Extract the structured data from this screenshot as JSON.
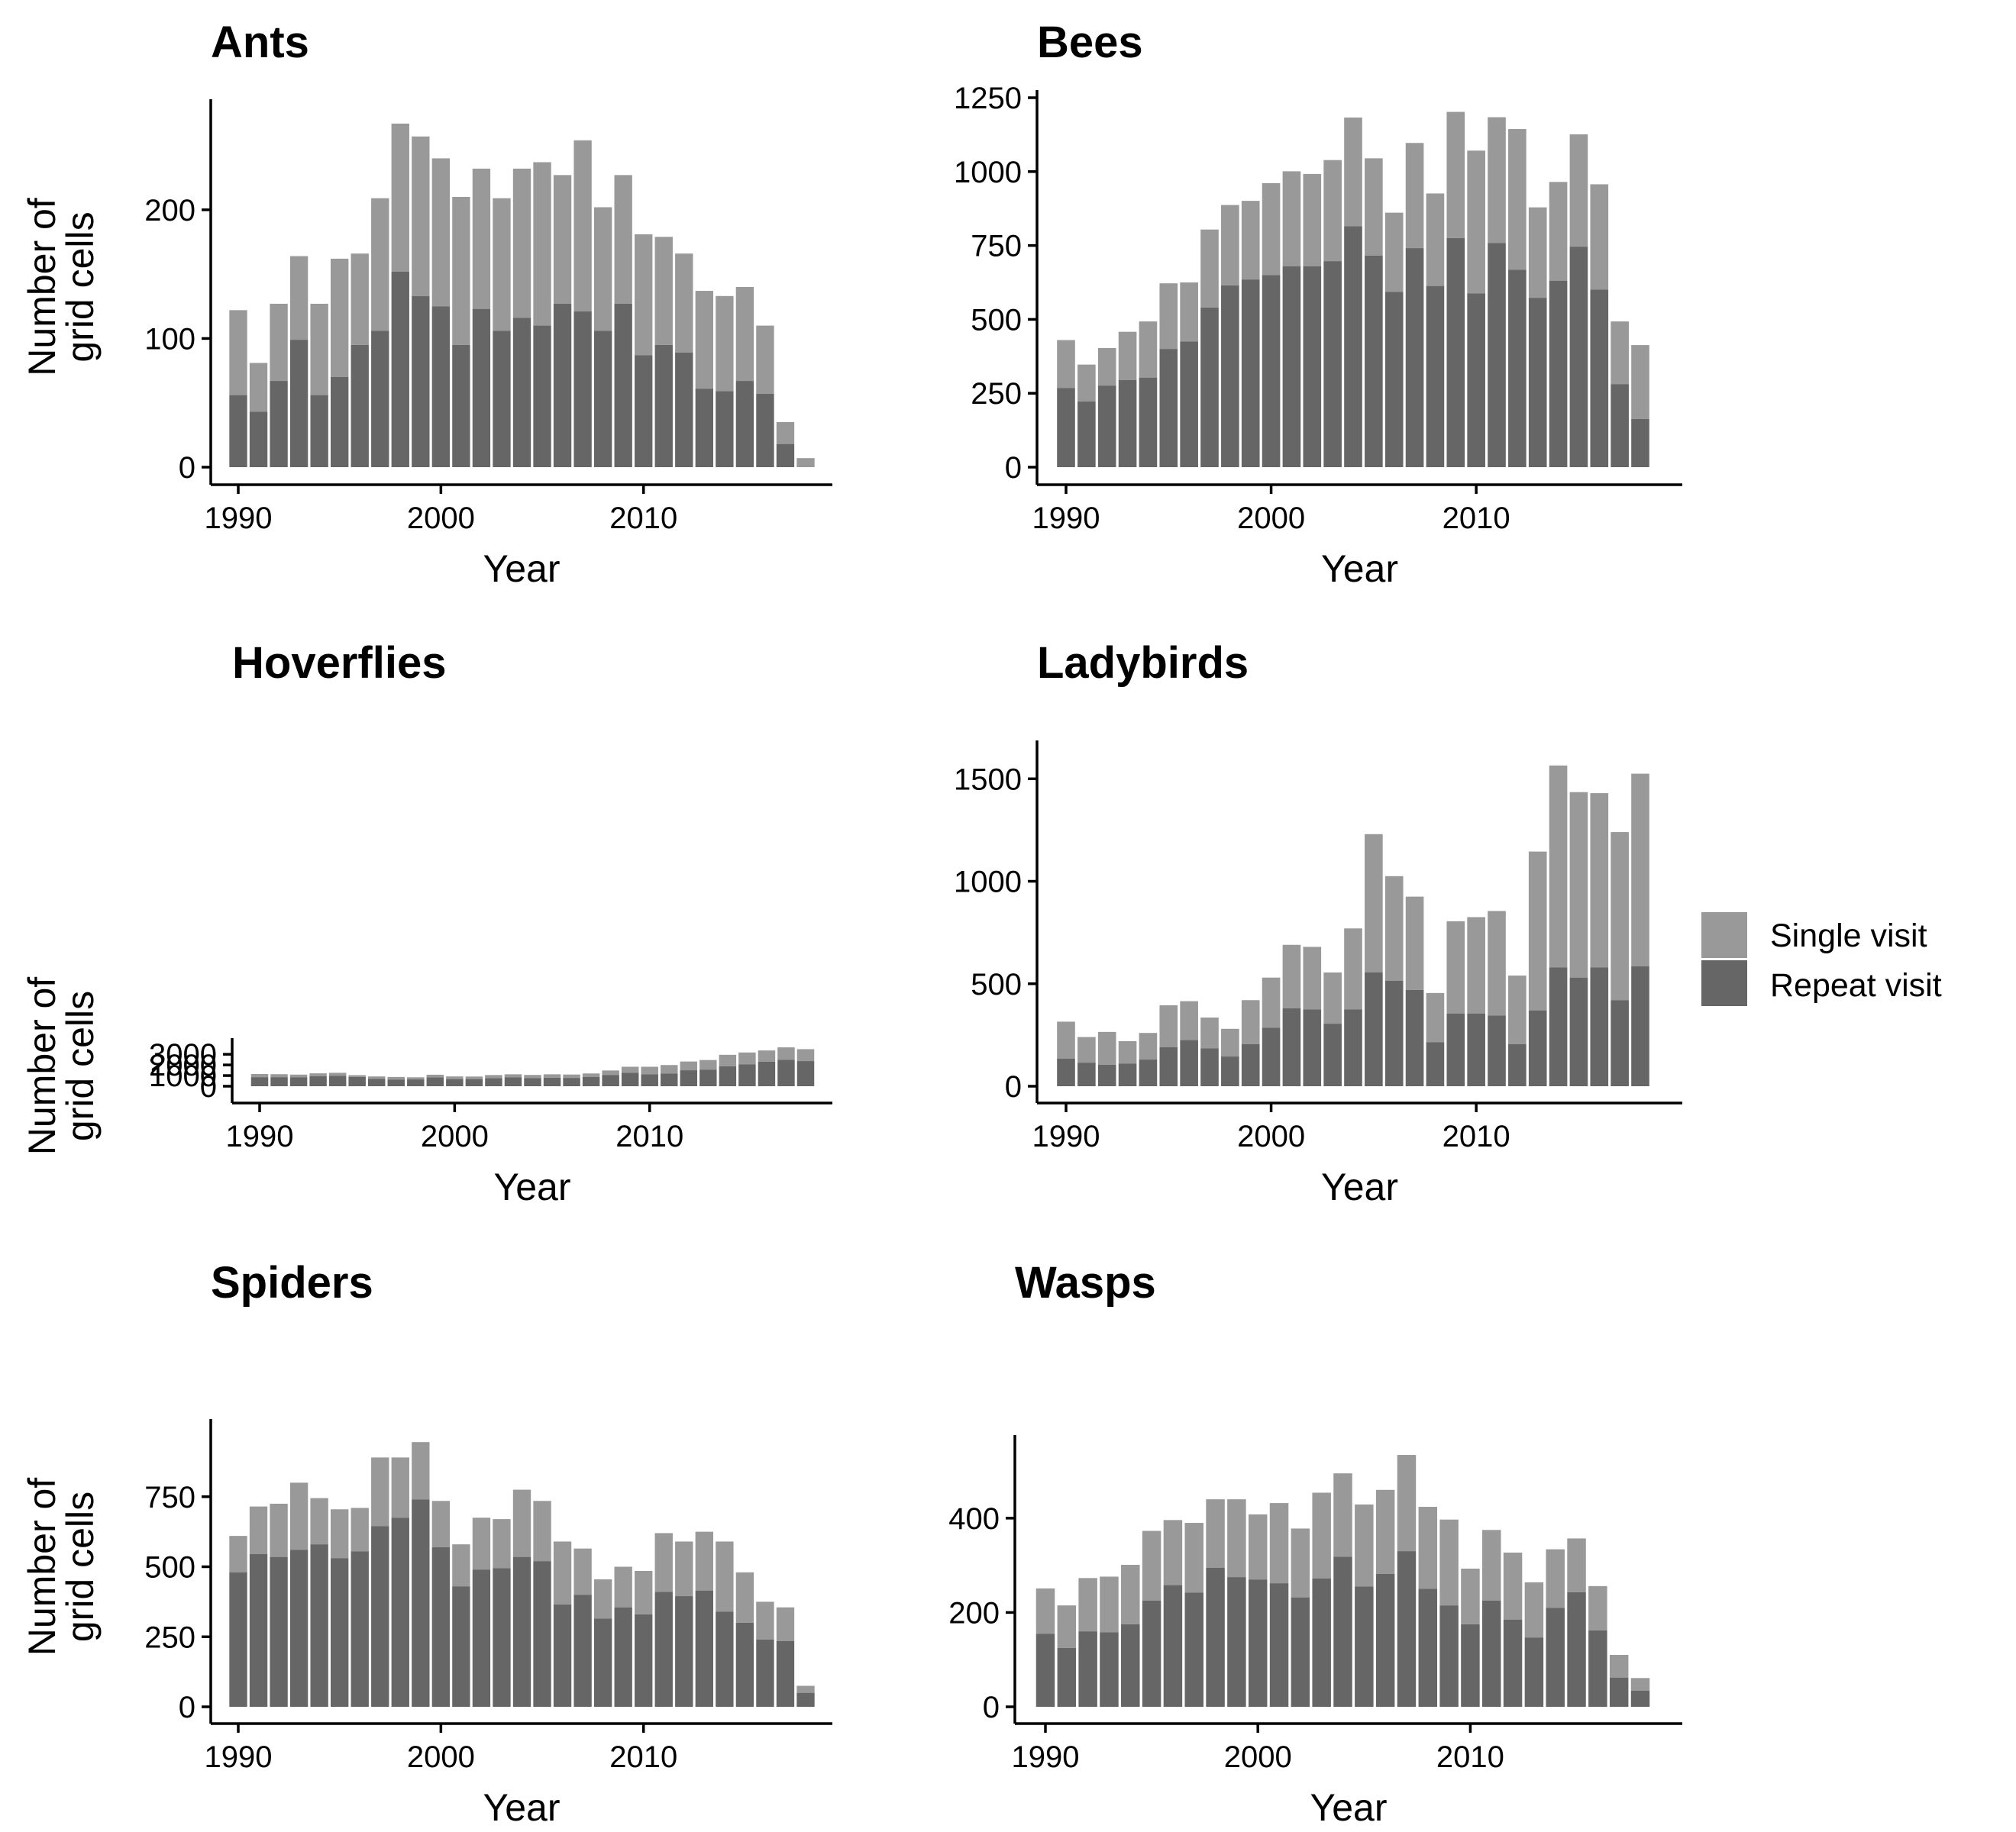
{
  "colors": {
    "single": "#999999",
    "repeat": "#666666",
    "axis": "#000000"
  },
  "legend": {
    "items": [
      {
        "key": "single",
        "label": "Single visit"
      },
      {
        "key": "repeat",
        "label": "Repeat visit"
      }
    ]
  },
  "chart_data": [
    {
      "type": "bar",
      "stacked": true,
      "title": "Ants",
      "xlabel": "Year",
      "ylabel": [
        "Number of",
        "grid cells"
      ],
      "xticks": [
        1990,
        2000,
        2010
      ],
      "yticks": [
        0,
        100,
        200
      ],
      "ylim": [
        0,
        280
      ],
      "x": [
        1990,
        1991,
        1992,
        1993,
        1994,
        1995,
        1996,
        1997,
        1998,
        1999,
        2000,
        2001,
        2002,
        2003,
        2004,
        2005,
        2006,
        2007,
        2008,
        2009,
        2010,
        2011,
        2012,
        2013,
        2014,
        2015,
        2016,
        2017,
        2018
      ],
      "series": [
        {
          "name": "Repeat visit",
          "values": [
            56,
            43,
            67,
            99,
            56,
            70,
            95,
            106,
            152,
            133,
            125,
            95,
            123,
            106,
            116,
            110,
            127,
            121,
            106,
            127,
            87,
            95,
            89,
            61,
            59,
            67,
            57,
            18,
            0
          ]
        },
        {
          "name": "Single visit",
          "values": [
            66,
            38,
            60,
            65,
            71,
            92,
            71,
            103,
            115,
            124,
            115,
            115,
            109,
            103,
            116,
            127,
            100,
            133,
            96,
            100,
            94,
            84,
            77,
            76,
            74,
            73,
            53,
            17,
            7
          ]
        }
      ],
      "totals": [
        122,
        81,
        127,
        164,
        127,
        162,
        166,
        209,
        267,
        257,
        240,
        210,
        232,
        209,
        232,
        237,
        227,
        254,
        202,
        227,
        181,
        179,
        166,
        137,
        133,
        140,
        110,
        35,
        7
      ]
    },
    {
      "type": "bar",
      "stacked": true,
      "title": "Bees",
      "xlabel": "Year",
      "ylabel": "",
      "xticks": [
        1990,
        2000,
        2010
      ],
      "yticks": [
        0,
        250,
        500,
        750,
        1000,
        1250
      ],
      "ylim": [
        0,
        1250
      ],
      "x": [
        1990,
        1991,
        1992,
        1993,
        1994,
        1995,
        1996,
        1997,
        1998,
        1999,
        2000,
        2001,
        2002,
        2003,
        2004,
        2005,
        2006,
        2007,
        2008,
        2009,
        2010,
        2011,
        2012,
        2013,
        2014,
        2015,
        2016,
        2017,
        2018
      ],
      "series": [
        {
          "name": "Repeat visit",
          "values": [
            268,
            222,
            276,
            295,
            303,
            400,
            425,
            540,
            615,
            635,
            650,
            680,
            680,
            697,
            815,
            716,
            593,
            741,
            613,
            775,
            588,
            758,
            668,
            573,
            631,
            746,
            601,
            281,
            163
          ]
        },
        {
          "name": "Single visit",
          "values": [
            162,
            125,
            127,
            163,
            190,
            222,
            200,
            264,
            272,
            266,
            311,
            321,
            312,
            342,
            368,
            329,
            268,
            356,
            313,
            427,
            483,
            426,
            476,
            306,
            334,
            380,
            356,
            212,
            250
          ]
        }
      ],
      "totals": [
        430,
        347,
        403,
        458,
        493,
        622,
        625,
        804,
        887,
        901,
        961,
        1001,
        992,
        1039,
        1183,
        1045,
        861,
        1097,
        926,
        1202,
        1071,
        1184,
        1144,
        879,
        965,
        1126,
        957,
        493,
        413
      ]
    },
    {
      "type": "bar",
      "stacked": true,
      "title": "Hoverflies",
      "xlabel": "Year",
      "ylabel": [
        "Number of",
        "grid cells"
      ],
      "xticks": [
        1990,
        2000,
        2010
      ],
      "yticks": [
        0,
        1000,
        2000,
        3000
      ],
      "ylim": [
        0,
        3800
      ],
      "x": [
        1990,
        1991,
        1992,
        1993,
        1994,
        1995,
        1996,
        1997,
        1998,
        1999,
        2000,
        2001,
        2002,
        2003,
        2004,
        2005,
        2006,
        2007,
        2008,
        2009,
        2010,
        2011,
        2012,
        2013,
        2014,
        2015,
        2016,
        2017,
        2018
      ],
      "series": [
        {
          "name": "Repeat visit",
          "values": [
            850,
            850,
            840,
            940,
            980,
            870,
            680,
            630,
            640,
            820,
            670,
            670,
            750,
            830,
            760,
            800,
            780,
            860,
            1060,
            1260,
            1120,
            1190,
            1500,
            1560,
            1870,
            2060,
            2300,
            2480,
            2360
          ]
        },
        {
          "name": "Single visit",
          "values": [
            300,
            280,
            250,
            270,
            280,
            170,
            240,
            240,
            200,
            260,
            250,
            240,
            300,
            290,
            300,
            320,
            320,
            340,
            420,
            570,
            710,
            800,
            820,
            900,
            1080,
            1110,
            1060,
            1170,
            1120
          ]
        }
      ],
      "totals": [
        1150,
        1130,
        1090,
        1210,
        1260,
        1040,
        920,
        870,
        840,
        1080,
        920,
        910,
        1050,
        1120,
        1060,
        1120,
        1100,
        1200,
        1480,
        1830,
        1830,
        1990,
        2320,
        2460,
        2950,
        3170,
        3360,
        3650,
        3480
      ]
    },
    {
      "type": "bar",
      "stacked": true,
      "title": "Ladybirds",
      "xlabel": "Year",
      "ylabel": "",
      "xticks": [
        1990,
        2000,
        2010
      ],
      "yticks": [
        0,
        500,
        1000,
        1500
      ],
      "ylim": [
        0,
        1650
      ],
      "x": [
        1990,
        1991,
        1992,
        1993,
        1994,
        1995,
        1996,
        1997,
        1998,
        1999,
        2000,
        2001,
        2002,
        2003,
        2004,
        2005,
        2006,
        2007,
        2008,
        2009,
        2010,
        2011,
        2012,
        2013,
        2014,
        2015,
        2016,
        2017,
        2018
      ],
      "series": [
        {
          "name": "Repeat visit",
          "values": [
            135,
            115,
            105,
            110,
            130,
            190,
            225,
            185,
            145,
            205,
            285,
            380,
            375,
            305,
            375,
            555,
            515,
            470,
            215,
            355,
            355,
            345,
            205,
            370,
            580,
            530,
            580,
            420,
            585
          ]
        },
        {
          "name": "Single visit",
          "values": [
            180,
            125,
            160,
            110,
            130,
            205,
            190,
            150,
            135,
            215,
            245,
            310,
            305,
            250,
            395,
            675,
            510,
            455,
            240,
            450,
            470,
            510,
            335,
            775,
            985,
            905,
            850,
            820,
            940
          ]
        }
      ],
      "totals": [
        315,
        240,
        265,
        220,
        260,
        395,
        415,
        335,
        280,
        420,
        530,
        690,
        680,
        555,
        770,
        1230,
        1025,
        925,
        455,
        805,
        825,
        855,
        540,
        1145,
        1565,
        1435,
        1430,
        1240,
        1525
      ]
    },
    {
      "type": "bar",
      "stacked": true,
      "title": "Spiders",
      "xlabel": "Year",
      "ylabel": [
        "Number of",
        "grid cells"
      ],
      "xticks": [
        1990,
        2000,
        2010
      ],
      "yticks": [
        0,
        250,
        500,
        750
      ],
      "ylim": [
        0,
        1000
      ],
      "x": [
        1990,
        1991,
        1992,
        1993,
        1994,
        1995,
        1996,
        1997,
        1998,
        1999,
        2000,
        2001,
        2002,
        2003,
        2004,
        2005,
        2006,
        2007,
        2008,
        2009,
        2010,
        2011,
        2012,
        2013,
        2014,
        2015,
        2016,
        2017,
        2018
      ],
      "series": [
        {
          "name": "Repeat visit",
          "values": [
            480,
            545,
            535,
            560,
            580,
            530,
            555,
            645,
            675,
            740,
            570,
            430,
            490,
            495,
            535,
            520,
            365,
            400,
            315,
            355,
            330,
            410,
            395,
            415,
            340,
            300,
            240,
            235,
            50
          ]
        },
        {
          "name": "Single visit",
          "values": [
            130,
            170,
            190,
            240,
            165,
            175,
            155,
            245,
            215,
            205,
            165,
            150,
            185,
            175,
            240,
            215,
            225,
            165,
            140,
            145,
            155,
            210,
            195,
            210,
            250,
            180,
            135,
            120,
            25
          ]
        }
      ],
      "totals": [
        610,
        715,
        725,
        800,
        745,
        705,
        710,
        890,
        890,
        945,
        735,
        580,
        675,
        670,
        775,
        735,
        590,
        565,
        455,
        500,
        485,
        620,
        590,
        625,
        590,
        480,
        375,
        355,
        75
      ]
    },
    {
      "type": "bar",
      "stacked": true,
      "title": "Wasps",
      "xlabel": "Year",
      "ylabel": "",
      "xticks": [
        1990,
        2000,
        2010
      ],
      "yticks": [
        0,
        200,
        400
      ],
      "ylim": [
        0,
        560
      ],
      "x": [
        1990,
        1991,
        1992,
        1993,
        1994,
        1995,
        1996,
        1997,
        1998,
        1999,
        2000,
        2001,
        2002,
        2003,
        2004,
        2005,
        2006,
        2007,
        2008,
        2009,
        2010,
        2011,
        2012,
        2013,
        2014,
        2015,
        2016,
        2017,
        2018
      ],
      "series": [
        {
          "name": "Repeat visit",
          "values": [
            155,
            125,
            160,
            158,
            175,
            225,
            258,
            242,
            295,
            275,
            270,
            262,
            232,
            272,
            318,
            255,
            282,
            330,
            250,
            215,
            175,
            225,
            185,
            147,
            210,
            243,
            162,
            62,
            34
          ]
        },
        {
          "name": "Single visit",
          "values": [
            96,
            90,
            113,
            118,
            126,
            148,
            138,
            148,
            145,
            165,
            138,
            170,
            146,
            182,
            177,
            174,
            178,
            204,
            174,
            182,
            118,
            150,
            142,
            117,
            124,
            114,
            94,
            48,
            27
          ]
        }
      ],
      "totals": [
        251,
        215,
        273,
        276,
        301,
        373,
        396,
        390,
        440,
        440,
        408,
        432,
        378,
        454,
        495,
        429,
        460,
        534,
        424,
        397,
        293,
        375,
        327,
        264,
        334,
        357,
        256,
        110,
        61
      ]
    }
  ]
}
